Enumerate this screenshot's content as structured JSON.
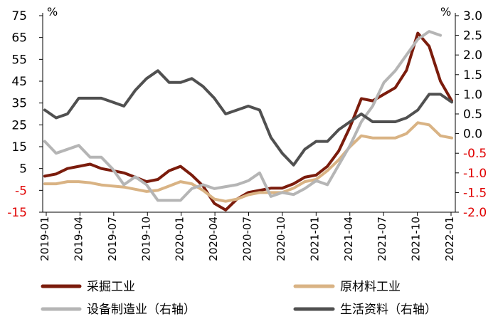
{
  "chart_data": {
    "type": "line",
    "left_axis": {
      "unit": "%",
      "ticks": [
        "75",
        "65",
        "55",
        "45",
        "35",
        "25",
        "15",
        "5",
        "-5",
        "-15"
      ],
      "negative_ticks_color": "#e00000",
      "range": [
        -15,
        75
      ]
    },
    "right_axis": {
      "unit": "%",
      "ticks": [
        "3.0",
        "2.5",
        "2.0",
        "1.5",
        "1.0",
        "0.5",
        "0.0",
        "-0.5",
        "-1.0",
        "-1.5",
        "-2.0"
      ],
      "negative_ticks_color": "#e00000",
      "range": [
        -2.0,
        3.0
      ]
    },
    "x_labels": [
      "2019-01",
      "2019-04",
      "2019-07",
      "2019-10",
      "2020-01",
      "2020-04",
      "2020-07",
      "2020-10",
      "2021-01",
      "2021-04",
      "2021-07",
      "2021-10",
      "2022-01"
    ],
    "series": [
      {
        "name": "采掘工业",
        "axis": "left",
        "color": "#7b1c0c",
        "values": [
          1.5,
          2.5,
          5,
          6,
          7,
          5,
          4,
          3,
          1,
          -1,
          0,
          4,
          6,
          2,
          -3,
          -11,
          -14,
          -9,
          -6,
          -5,
          -4,
          -4,
          -2,
          1,
          2,
          6,
          13,
          24,
          37,
          36,
          39,
          42,
          50,
          67,
          61,
          45,
          36
        ]
      },
      {
        "name": "原材料工业",
        "axis": "left",
        "color": "#d9b384",
        "values": [
          -2,
          -2,
          -1,
          -1,
          -1.5,
          -2.5,
          -3,
          -3.5,
          -4.5,
          -5.5,
          -5,
          -3,
          -1,
          -2,
          -5,
          -9,
          -10,
          -9,
          -7,
          -6,
          -6,
          -6,
          -4,
          -1,
          0,
          4,
          9,
          15,
          20,
          19,
          19,
          19,
          21,
          26,
          25,
          20,
          19
        ]
      },
      {
        "name": "设备制造业（右轴）",
        "axis": "right",
        "color": "#b5b5b5",
        "values": [
          -0.2,
          -0.5,
          -0.4,
          -0.3,
          -0.6,
          -0.6,
          -0.9,
          -1.3,
          -1.1,
          -1.3,
          -1.7,
          -1.7,
          -1.7,
          -1.4,
          -1.3,
          -1.4,
          -1.35,
          -1.3,
          -1.2,
          -1.0,
          -1.6,
          -1.5,
          -1.55,
          -1.4,
          -1.2,
          -1.3,
          -0.8,
          -0.3,
          0.3,
          0.7,
          1.3,
          1.6,
          2.0,
          2.4,
          2.6,
          2.5,
          null
        ]
      },
      {
        "name": "生活资料（右轴）",
        "axis": "right",
        "color": "#505050",
        "values": [
          0.6,
          0.4,
          0.5,
          0.9,
          0.9,
          0.9,
          0.8,
          0.7,
          1.1,
          1.4,
          1.6,
          1.3,
          1.3,
          1.4,
          1.2,
          0.9,
          0.5,
          0.6,
          0.7,
          0.6,
          -0.1,
          -0.5,
          -0.8,
          -0.4,
          -0.2,
          -0.2,
          0.1,
          0.3,
          0.5,
          0.3,
          0.3,
          0.3,
          0.4,
          0.6,
          1.0,
          1.0,
          0.8
        ]
      }
    ],
    "legend_position": "bottom",
    "grid": false
  }
}
